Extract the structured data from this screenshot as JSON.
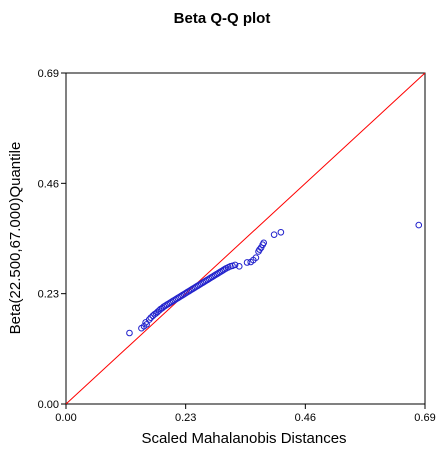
{
  "chart_data": {
    "type": "scatter",
    "title": "Beta Q-Q plot",
    "xlabel": "Scaled Mahalanobis Distances",
    "ylabel": "Beta(22.500,67.000)Quantile",
    "xlim": [
      0,
      0.69
    ],
    "ylim": [
      0,
      0.69
    ],
    "xticks": [
      "0.00",
      "0.23",
      "0.46",
      "0.69"
    ],
    "yticks": [
      "0.00",
      "0.23",
      "0.46",
      "0.69"
    ],
    "grid": false,
    "reference_line": {
      "from": [
        0,
        0
      ],
      "to": [
        0.69,
        0.69
      ],
      "color": "#ff0000"
    },
    "marker_color": "#2222cc",
    "line_color": "#ff0000",
    "points": [
      [
        0.122,
        0.148
      ],
      [
        0.145,
        0.158
      ],
      [
        0.15,
        0.162
      ],
      [
        0.153,
        0.17
      ],
      [
        0.155,
        0.166
      ],
      [
        0.16,
        0.176
      ],
      [
        0.163,
        0.18
      ],
      [
        0.167,
        0.184
      ],
      [
        0.17,
        0.187
      ],
      [
        0.173,
        0.189
      ],
      [
        0.176,
        0.192
      ],
      [
        0.179,
        0.195
      ],
      [
        0.182,
        0.198
      ],
      [
        0.185,
        0.2
      ],
      [
        0.188,
        0.203
      ],
      [
        0.191,
        0.205
      ],
      [
        0.194,
        0.207
      ],
      [
        0.197,
        0.209
      ],
      [
        0.2,
        0.211
      ],
      [
        0.203,
        0.213
      ],
      [
        0.206,
        0.215
      ],
      [
        0.209,
        0.217
      ],
      [
        0.212,
        0.219
      ],
      [
        0.215,
        0.221
      ],
      [
        0.218,
        0.223
      ],
      [
        0.221,
        0.225
      ],
      [
        0.224,
        0.227
      ],
      [
        0.227,
        0.229
      ],
      [
        0.23,
        0.231
      ],
      [
        0.233,
        0.233
      ],
      [
        0.236,
        0.235
      ],
      [
        0.239,
        0.237
      ],
      [
        0.242,
        0.239
      ],
      [
        0.245,
        0.241
      ],
      [
        0.248,
        0.243
      ],
      [
        0.251,
        0.245
      ],
      [
        0.254,
        0.247
      ],
      [
        0.257,
        0.249
      ],
      [
        0.26,
        0.251
      ],
      [
        0.263,
        0.253
      ],
      [
        0.266,
        0.255
      ],
      [
        0.269,
        0.257
      ],
      [
        0.272,
        0.259
      ],
      [
        0.275,
        0.261
      ],
      [
        0.278,
        0.263
      ],
      [
        0.281,
        0.265
      ],
      [
        0.284,
        0.267
      ],
      [
        0.287,
        0.269
      ],
      [
        0.29,
        0.271
      ],
      [
        0.293,
        0.273
      ],
      [
        0.296,
        0.275
      ],
      [
        0.299,
        0.277
      ],
      [
        0.302,
        0.279
      ],
      [
        0.305,
        0.281
      ],
      [
        0.308,
        0.283
      ],
      [
        0.312,
        0.285
      ],
      [
        0.316,
        0.287
      ],
      [
        0.32,
        0.288
      ],
      [
        0.325,
        0.29
      ],
      [
        0.333,
        0.287
      ],
      [
        0.348,
        0.295
      ],
      [
        0.355,
        0.296
      ],
      [
        0.36,
        0.3
      ],
      [
        0.365,
        0.305
      ],
      [
        0.37,
        0.318
      ],
      [
        0.372,
        0.322
      ],
      [
        0.375,
        0.326
      ],
      [
        0.378,
        0.332
      ],
      [
        0.38,
        0.336
      ],
      [
        0.4,
        0.353
      ],
      [
        0.413,
        0.358
      ],
      [
        0.678,
        0.373
      ]
    ]
  }
}
